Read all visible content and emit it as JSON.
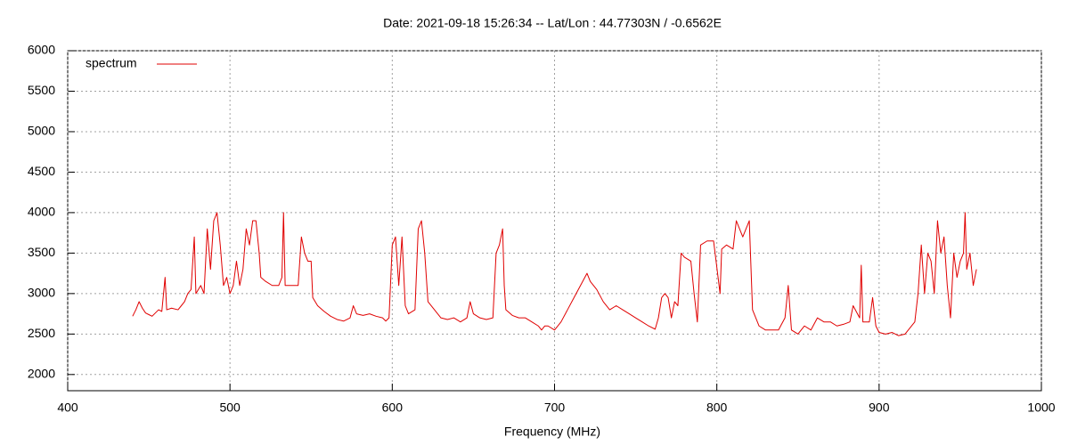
{
  "chart_data": {
    "type": "line",
    "title": "Date: 2021-09-18 15:26:34  --  Lat/Lon : 44.77303N / -0.6562E",
    "xlabel": "Frequency (MHz)",
    "x": [
      440,
      442,
      444,
      446,
      448,
      450,
      452,
      454,
      456,
      458,
      460,
      461,
      464,
      468,
      470,
      472,
      474,
      476,
      478,
      479,
      482,
      484,
      486,
      488,
      490,
      492,
      494,
      496,
      498,
      500,
      502,
      504,
      506,
      508,
      510,
      512,
      514,
      516,
      518,
      519,
      522,
      526,
      530,
      532,
      533,
      534,
      538,
      540,
      542,
      544,
      546,
      548,
      550,
      551,
      554,
      558,
      562,
      566,
      570,
      574,
      576,
      578,
      582,
      586,
      590,
      594,
      596,
      598,
      600,
      602,
      604,
      606,
      608,
      610,
      614,
      616,
      618,
      620,
      622,
      626,
      630,
      634,
      638,
      642,
      646,
      648,
      650,
      654,
      658,
      662,
      664,
      666,
      668,
      669,
      670,
      674,
      678,
      682,
      686,
      690,
      692,
      694,
      696,
      700,
      704,
      708,
      712,
      716,
      720,
      722,
      726,
      730,
      734,
      738,
      742,
      746,
      750,
      754,
      758,
      762,
      764,
      766,
      768,
      770,
      772,
      774,
      776,
      778,
      780,
      784,
      786,
      788,
      790,
      794,
      798,
      802,
      803,
      806,
      810,
      812,
      816,
      818,
      820,
      822,
      826,
      830,
      834,
      838,
      842,
      844,
      846,
      850,
      854,
      858,
      862,
      866,
      870,
      874,
      878,
      882,
      884,
      888,
      889,
      890,
      894,
      896,
      898,
      900,
      904,
      908,
      912,
      916,
      920,
      922,
      924,
      926,
      928,
      930,
      932,
      934,
      936,
      938,
      940,
      942,
      944,
      946,
      948,
      950,
      952,
      953,
      954,
      956,
      958,
      960
    ],
    "series": [
      {
        "name": "spectrum",
        "color": "#e00000",
        "values": [
          2720,
          2800,
          2900,
          2820,
          2760,
          2740,
          2720,
          2760,
          2800,
          2780,
          3200,
          2800,
          2820,
          2800,
          2850,
          2900,
          3000,
          3050,
          3700,
          3000,
          3100,
          3000,
          3800,
          3300,
          3900,
          4000,
          3600,
          3100,
          3200,
          3000,
          3100,
          3400,
          3100,
          3300,
          3800,
          3600,
          3900,
          3900,
          3500,
          3200,
          3150,
          3100,
          3100,
          3200,
          4000,
          3100,
          3100,
          3100,
          3100,
          3700,
          3500,
          3400,
          3400,
          2950,
          2850,
          2780,
          2720,
          2680,
          2660,
          2700,
          2850,
          2750,
          2730,
          2750,
          2720,
          2700,
          2660,
          2700,
          3600,
          3700,
          3100,
          3700,
          2850,
          2750,
          2800,
          3800,
          3900,
          3500,
          2900,
          2800,
          2700,
          2680,
          2700,
          2650,
          2700,
          2900,
          2750,
          2700,
          2680,
          2700,
          3500,
          3600,
          3800,
          3100,
          2800,
          2730,
          2700,
          2700,
          2650,
          2600,
          2550,
          2600,
          2600,
          2550,
          2650,
          2800,
          2950,
          3100,
          3250,
          3150,
          3050,
          2900,
          2800,
          2850,
          2800,
          2750,
          2700,
          2650,
          2600,
          2560,
          2700,
          2950,
          3000,
          2950,
          2700,
          2900,
          2850,
          3500,
          3450,
          3400,
          3000,
          2650,
          3600,
          3650,
          3650,
          3000,
          3550,
          3600,
          3550,
          3900,
          3700,
          3800,
          3900,
          2800,
          2600,
          2550,
          2550,
          2550,
          2700,
          3100,
          2550,
          2500,
          2600,
          2550,
          2700,
          2650,
          2650,
          2600,
          2620,
          2650,
          2850,
          2700,
          3350,
          2650,
          2650,
          2950,
          2600,
          2520,
          2500,
          2520,
          2480,
          2500,
          2600,
          2650,
          3000,
          3600,
          3000,
          3500,
          3400,
          3000,
          3900,
          3500,
          3700,
          3100,
          2700,
          3500,
          3200,
          3400,
          3500,
          4000,
          3300,
          3500,
          3100,
          3300
        ]
      }
    ],
    "xlim": [
      400,
      1000
    ],
    "ylim": [
      1800,
      6000
    ],
    "xticks": [
      400,
      500,
      600,
      700,
      800,
      900,
      1000
    ],
    "yticks": [
      2000,
      2500,
      3000,
      3500,
      4000,
      4500,
      5000,
      5500,
      6000
    ],
    "grid": true,
    "legend": "upper left"
  }
}
